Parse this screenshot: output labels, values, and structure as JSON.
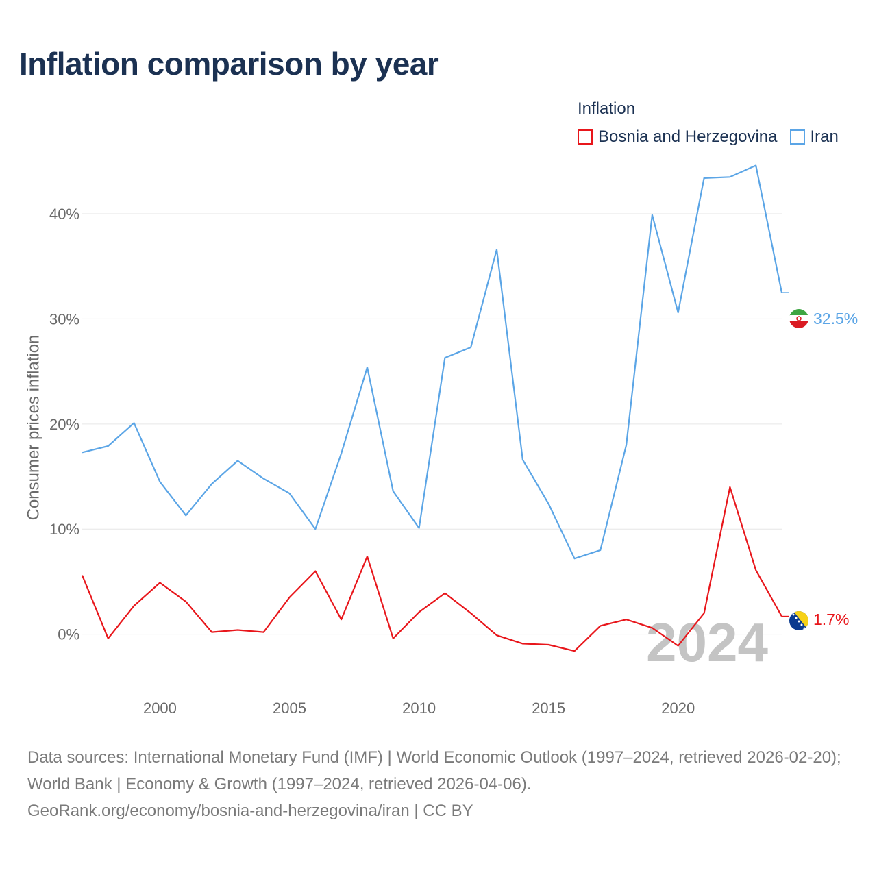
{
  "chart_data": {
    "type": "line",
    "title": "Inflation comparison by year",
    "ylabel": "Consumer prices inflation",
    "xlabel": "",
    "legend_title": "Inflation",
    "legend_position": "top-right",
    "x": [
      1997,
      1998,
      1999,
      2000,
      2001,
      2002,
      2003,
      2004,
      2005,
      2006,
      2007,
      2008,
      2009,
      2010,
      2011,
      2012,
      2013,
      2014,
      2015,
      2016,
      2017,
      2018,
      2019,
      2020,
      2021,
      2022,
      2023,
      2024
    ],
    "xlim": [
      1997,
      2024
    ],
    "ylim": [
      -5.5,
      46
    ],
    "x_ticks": [
      2000,
      2005,
      2010,
      2015,
      2020
    ],
    "y_ticks": [
      0,
      10,
      20,
      30,
      40
    ],
    "y_tick_labels": [
      "0%",
      "10%",
      "20%",
      "30%",
      "40%"
    ],
    "grid": true,
    "highlight_year": "2024",
    "series": [
      {
        "name": "Bosnia and Herzegovina",
        "color": "#e8161b",
        "flag": "bosnia-flag-icon",
        "end_label": "1.7%",
        "values": [
          5.6,
          -0.4,
          2.7,
          4.9,
          3.1,
          0.2,
          0.4,
          0.2,
          3.5,
          6.0,
          1.4,
          7.4,
          -0.4,
          2.1,
          3.9,
          2.0,
          -0.1,
          -0.9,
          -1.0,
          -1.6,
          0.8,
          1.4,
          0.6,
          -1.1,
          2.0,
          14.0,
          6.1,
          1.7
        ]
      },
      {
        "name": "Iran",
        "color": "#5ba5e6",
        "flag": "iran-flag-icon",
        "end_label": "32.5%",
        "values": [
          17.3,
          17.9,
          20.1,
          14.5,
          11.3,
          14.3,
          16.5,
          14.8,
          13.4,
          10.0,
          17.2,
          25.4,
          13.6,
          10.1,
          26.3,
          27.3,
          36.6,
          16.6,
          12.4,
          7.2,
          8.0,
          18.0,
          39.9,
          30.6,
          43.4,
          43.5,
          44.6,
          32.5
        ]
      }
    ]
  },
  "footer": {
    "sources": "Data sources: International Monetary Fund (IMF) | World Economic Outlook (1997–2024, retrieved 2026-02-20); World Bank | Economy & Growth (1997–2024, retrieved 2026-04-06).",
    "link": "GeoRank.org/economy/bosnia-and-herzegovina/iran | CC BY"
  }
}
